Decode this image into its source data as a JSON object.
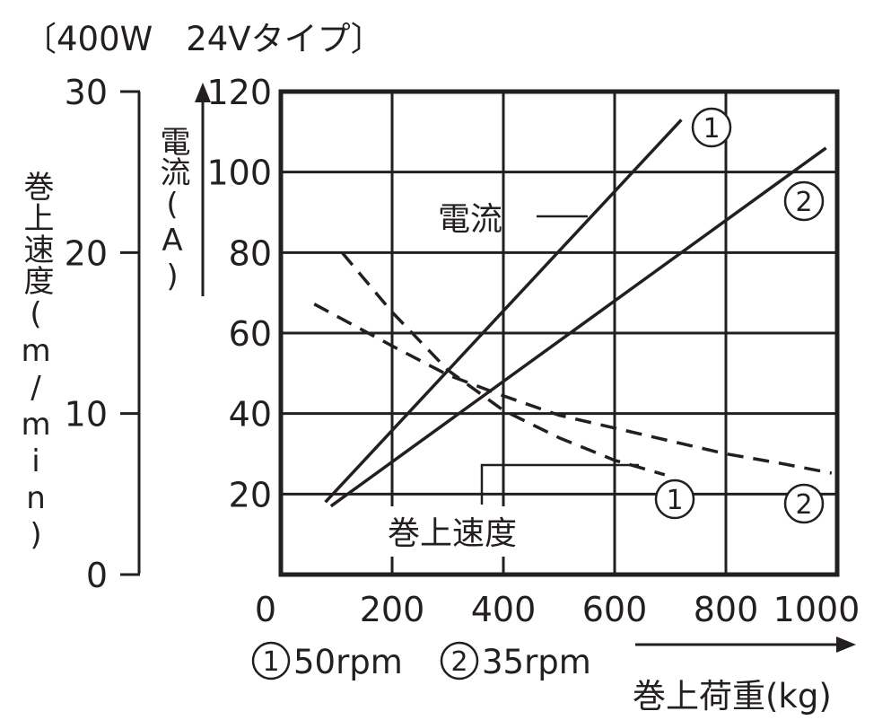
{
  "chart_data": {
    "type": "line",
    "title": "〔400W　24Vタイプ〕",
    "x_axis": {
      "label": "巻上荷重(kg)",
      "range": [
        0,
        1000
      ],
      "ticks": [
        0,
        200,
        400,
        600,
        800,
        1000
      ]
    },
    "y_axis_current": {
      "label": "電流(A)",
      "range": [
        0,
        120
      ],
      "ticks": [
        20,
        40,
        60,
        80,
        100,
        120
      ]
    },
    "y_axis_speed": {
      "label": "巻上速度(m/min)",
      "range": [
        0,
        30
      ],
      "ticks": [
        0,
        10,
        20,
        30
      ]
    },
    "grid": true,
    "annotations": {
      "current": "電流",
      "speed": "巻上速度"
    },
    "legend": {
      "series1_num": "1",
      "series1_text": "50rpm",
      "series2_num": "2",
      "series2_text": "35rpm"
    },
    "series": [
      {
        "name": "①",
        "quantity": "電流",
        "axis": "current",
        "style": "solid",
        "x": [
          80,
          720
        ],
        "y": [
          18,
          113
        ]
      },
      {
        "name": "②",
        "quantity": "電流",
        "axis": "current",
        "style": "solid",
        "x": [
          90,
          980
        ],
        "y": [
          17,
          106
        ]
      },
      {
        "name": "①",
        "quantity": "巻上速度",
        "axis": "speed",
        "style": "dashed",
        "x": [
          110,
          200,
          300,
          400,
          500,
          600,
          690
        ],
        "y": [
          20,
          16.3,
          12.7,
          10.2,
          8.5,
          7.1,
          6.2
        ]
      },
      {
        "name": "②",
        "quantity": "巻上速度",
        "axis": "speed",
        "style": "dashed",
        "x": [
          60,
          200,
          300,
          400,
          500,
          600,
          700,
          800,
          900,
          990
        ],
        "y": [
          16.8,
          14.2,
          12.4,
          11.1,
          9.9,
          9.1,
          8.3,
          7.5,
          6.9,
          6.3
        ]
      }
    ]
  }
}
